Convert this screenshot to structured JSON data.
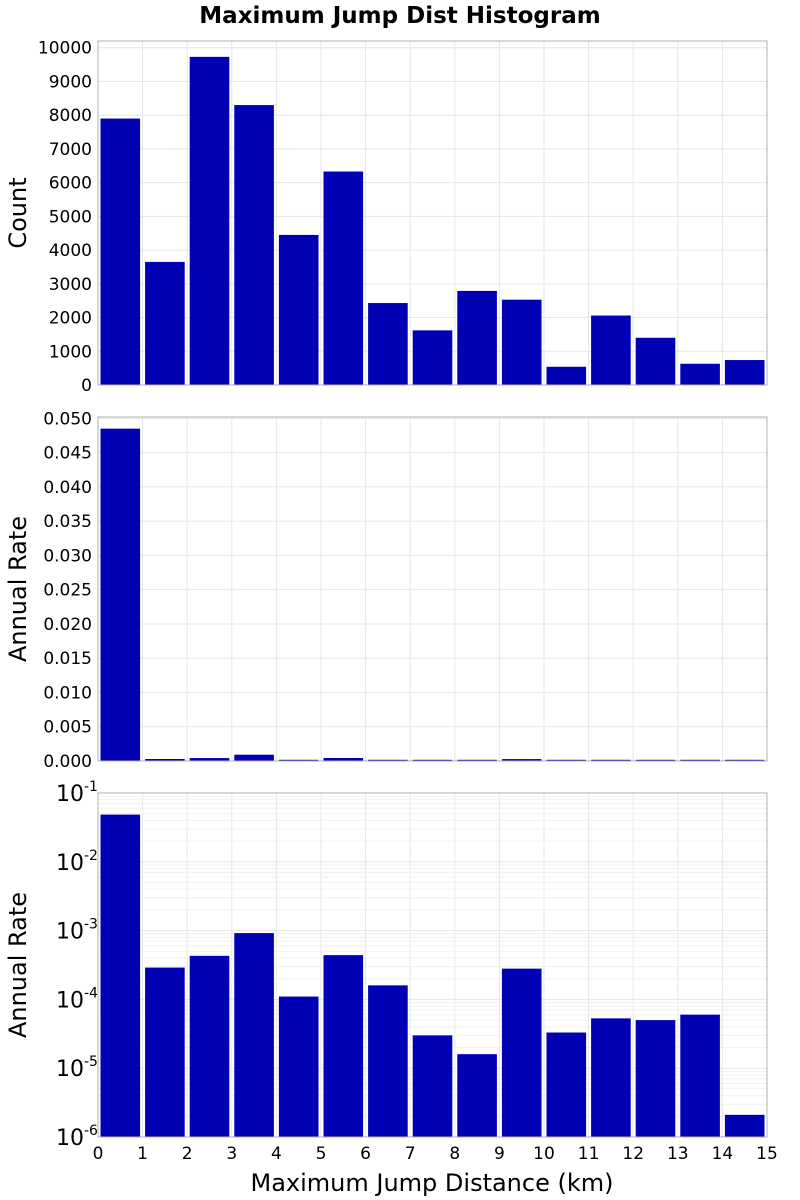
{
  "figure": {
    "title": "Maximum Jump Dist Histogram",
    "xlabel": "Maximum Jump Distance (km)",
    "bar_color": "#0000b4"
  },
  "chart_data": [
    {
      "type": "bar",
      "name": "count-panel",
      "ylabel": "Count",
      "yscale": "linear",
      "xlim": [
        0,
        15
      ],
      "ylim": [
        0,
        10200
      ],
      "yticks": [
        0,
        1000,
        2000,
        3000,
        4000,
        5000,
        6000,
        7000,
        8000,
        9000,
        10000
      ],
      "ytick_labels": [
        "0",
        "1000",
        "2000",
        "3000",
        "4000",
        "5000",
        "6000",
        "7000",
        "8000",
        "9000",
        "10000"
      ],
      "grid": true,
      "bins": [
        0.5,
        1.5,
        2.5,
        3.5,
        4.5,
        5.5,
        6.5,
        7.5,
        8.5,
        9.5,
        10.5,
        11.5,
        12.5,
        13.5,
        14.5
      ],
      "bin_width": 1,
      "values": [
        7900,
        3650,
        9730,
        8300,
        4450,
        6330,
        2430,
        1620,
        2790,
        2530,
        540,
        2060,
        1400,
        630,
        740
      ]
    },
    {
      "type": "bar",
      "name": "rate-linear-panel",
      "ylabel": "Annual Rate",
      "yscale": "linear",
      "xlim": [
        0,
        15
      ],
      "ylim": [
        0,
        0.0502
      ],
      "yticks": [
        0,
        0.005,
        0.01,
        0.015,
        0.02,
        0.025,
        0.03,
        0.035,
        0.04,
        0.045,
        0.05
      ],
      "ytick_labels": [
        "0.000",
        "0.005",
        "0.010",
        "0.015",
        "0.020",
        "0.025",
        "0.030",
        "0.035",
        "0.040",
        "0.045",
        "0.050"
      ],
      "grid": true,
      "bins": [
        0.5,
        1.5,
        2.5,
        3.5,
        4.5,
        5.5,
        6.5,
        7.5,
        8.5,
        9.5,
        10.5,
        11.5,
        12.5,
        13.5,
        14.5
      ],
      "bin_width": 1,
      "values": [
        0.0485,
        0.00029,
        0.00043,
        0.00092,
        0.00011,
        0.00044,
        0.00016,
        3e-05,
        1.6e-05,
        0.00028,
        3.3e-05,
        5.3e-05,
        5e-05,
        6e-05,
        2.1e-06
      ]
    },
    {
      "type": "bar",
      "name": "rate-log-panel",
      "ylabel": "Annual Rate",
      "yscale": "log",
      "xlim": [
        0,
        15
      ],
      "ylim": [
        1e-06,
        0.1
      ],
      "yticks": [
        1e-06,
        1e-05,
        0.0001,
        0.001,
        0.01,
        0.1
      ],
      "ytick_base": "10",
      "ytick_exponents": [
        "-6",
        "-5",
        "-4",
        "-3",
        "-2",
        "-1"
      ],
      "xticks": [
        0,
        1,
        2,
        3,
        4,
        5,
        6,
        7,
        8,
        9,
        10,
        11,
        12,
        13,
        14,
        15
      ],
      "xtick_labels": [
        "0",
        "1",
        "2",
        "3",
        "4",
        "5",
        "6",
        "7",
        "8",
        "9",
        "10",
        "11",
        "12",
        "13",
        "14",
        "15"
      ],
      "grid": true,
      "bins": [
        0.5,
        1.5,
        2.5,
        3.5,
        4.5,
        5.5,
        6.5,
        7.5,
        8.5,
        9.5,
        10.5,
        11.5,
        12.5,
        13.5,
        14.5
      ],
      "bin_width": 1,
      "values": [
        0.0485,
        0.00029,
        0.00043,
        0.00092,
        0.00011,
        0.00044,
        0.00016,
        3e-05,
        1.6e-05,
        0.00028,
        3.3e-05,
        5.3e-05,
        5e-05,
        6e-05,
        2.1e-06
      ]
    }
  ]
}
